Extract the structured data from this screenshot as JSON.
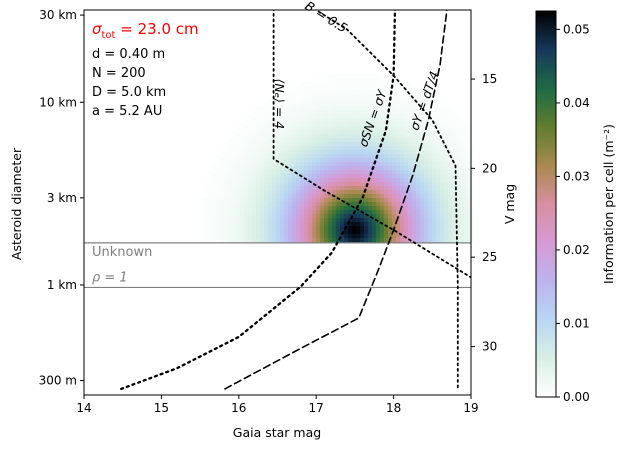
{
  "chart_data": {
    "type": "heatmap",
    "xlabel": "Gaia star mag",
    "ylabel": "Asteroid diameter",
    "ylabel_right": "V mag",
    "colorbar_label": "Information per cell (m⁻²)",
    "xlim": [
      14,
      19
    ],
    "ylim_km_log": [
      0.25,
      32
    ],
    "x_ticks": [
      14,
      15,
      16,
      17,
      18,
      19
    ],
    "y_ticks": [
      {
        "value_km": 30,
        "label": "30 km"
      },
      {
        "value_km": 10,
        "label": "10 km"
      },
      {
        "value_km": 3,
        "label": "3 km"
      },
      {
        "value_km": 1,
        "label": "1 km"
      },
      {
        "value_km": 0.3,
        "label": "300 m"
      }
    ],
    "vmag_ticks": [
      {
        "value": 15,
        "diam_km": 13.4
      },
      {
        "value": 20,
        "diam_km": 4.35
      },
      {
        "value": 25,
        "diam_km": 1.42
      },
      {
        "value": 30,
        "diam_km": 0.46
      }
    ],
    "colorbar": {
      "min": 0.0,
      "max": 0.0525,
      "ticks": [
        "0.00",
        "0.01",
        "0.02",
        "0.03",
        "0.04",
        "0.05"
      ],
      "tick_values": [
        0.0,
        0.01,
        0.02,
        0.03,
        0.04,
        0.05
      ],
      "colormap": "cubehelix_r"
    },
    "heatmap_peak": {
      "x": 17.5,
      "diam_km": 2.0,
      "value": 0.0525
    },
    "heatmap_lower_cutoff_km": 1.7,
    "params": {
      "sigma_tot_label": "σ",
      "sigma_tot_sub": "tot",
      "sigma_tot_value": " = 23.0 cm",
      "d": "d = 0.40 m",
      "N": "N = 200",
      "D": "D = 5.0 km",
      "a": "a = 5.2 AU"
    },
    "band": {
      "upper_km": 1.7,
      "lower_km": 0.97,
      "label": "Unknown",
      "rho_label": "ρ = 1"
    },
    "curves": [
      {
        "name": "sigma_SN_equals_sigma_Y",
        "style": "dotted-thick",
        "points": [
          [
            14.48,
            0.27
          ],
          [
            15.2,
            0.35
          ],
          [
            16.0,
            0.52
          ],
          [
            16.8,
            0.98
          ],
          [
            17.2,
            1.5
          ],
          [
            17.6,
            3.0
          ],
          [
            17.9,
            7.0
          ],
          [
            18.0,
            14.0
          ],
          [
            18.02,
            35.0
          ]
        ]
      },
      {
        "name": "sigma_Y_equals_d_T_over_4",
        "style": "dashed",
        "points": [
          [
            15.82,
            0.27
          ],
          [
            16.8,
            0.45
          ],
          [
            17.55,
            0.66
          ],
          [
            17.8,
            1.2
          ],
          [
            18.0,
            2.0
          ],
          [
            18.25,
            4.0
          ],
          [
            18.45,
            8.0
          ],
          [
            18.6,
            16.0
          ],
          [
            18.7,
            35.0
          ]
        ]
      },
      {
        "name": "Ne_equals_4",
        "style": "dotted",
        "points": [
          [
            16.45,
            35.0
          ],
          [
            16.45,
            4.9
          ],
          [
            17.1,
            3.3
          ],
          [
            18.0,
            2.0
          ],
          [
            19.0,
            1.1
          ]
        ]
      },
      {
        "name": "B_equals_0_5",
        "style": "dotted",
        "points": [
          [
            16.85,
            35.0
          ],
          [
            17.4,
            25.0
          ],
          [
            18.0,
            14.0
          ],
          [
            18.5,
            8.0
          ],
          [
            18.8,
            4.5
          ],
          [
            18.83,
            1.0
          ],
          [
            18.83,
            0.27
          ]
        ]
      }
    ],
    "curve_labels": [
      {
        "text": "B = 0.5",
        "x": 17.1,
        "diam_km": 28.0,
        "rotate": 32
      },
      {
        "text": "⟨Nₑ⟩ = 4",
        "x": 16.47,
        "diam_km": 9.8,
        "rotate": 90
      },
      {
        "text": "σSN = σY",
        "x": 17.78,
        "diam_km": 8.0,
        "rotate": -70
      },
      {
        "text": "σY = dT/4",
        "x": 18.45,
        "diam_km": 10.0,
        "rotate": -70
      }
    ]
  }
}
